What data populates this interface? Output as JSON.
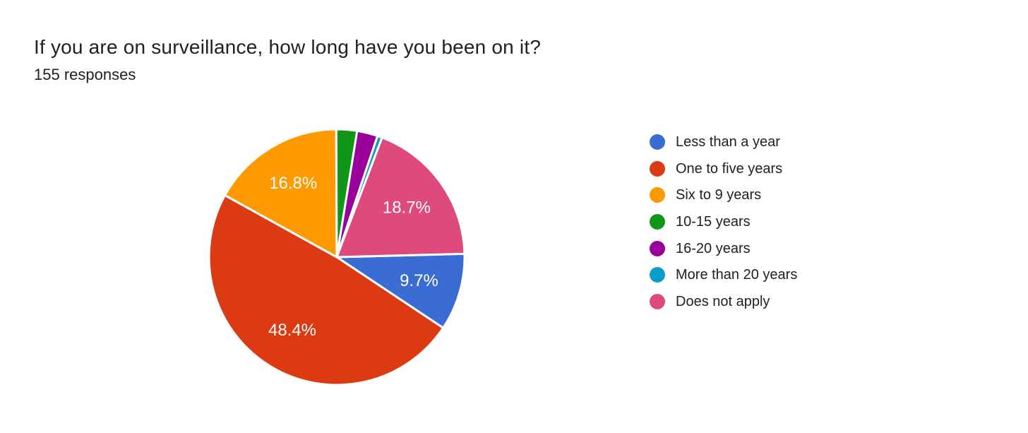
{
  "page": {
    "background": "#ffffff"
  },
  "chart_data": {
    "type": "pie",
    "title": "If you are on surveillance, how long have you been on it?",
    "subtitle": "155 responses",
    "responses_count": 155,
    "legend_position": "right",
    "start_angle_deg": 88.5,
    "slice_label_color": "#ffffff",
    "slices": [
      {
        "label": "Less than a year",
        "value_pct": 9.7,
        "display": "9.7%",
        "color": "#3b6cd4",
        "show_label": true
      },
      {
        "label": "One to five years",
        "value_pct": 48.4,
        "display": "48.4%",
        "color": "#db3a12",
        "show_label": true
      },
      {
        "label": "Six to 9 years",
        "value_pct": 16.8,
        "display": "16.8%",
        "color": "#ff9900",
        "show_label": true
      },
      {
        "label": "10-15 years",
        "value_pct": 2.6,
        "color": "#109618",
        "show_label": false
      },
      {
        "label": "16-20 years",
        "value_pct": 2.6,
        "color": "#990099",
        "show_label": false
      },
      {
        "label": "More than 20 years",
        "value_pct": 0.6,
        "color": "#0d9cc8",
        "show_label": false
      },
      {
        "label": "Does not apply",
        "value_pct": 18.7,
        "display": "18.7%",
        "color": "#de4a7d",
        "show_label": true
      }
    ]
  }
}
